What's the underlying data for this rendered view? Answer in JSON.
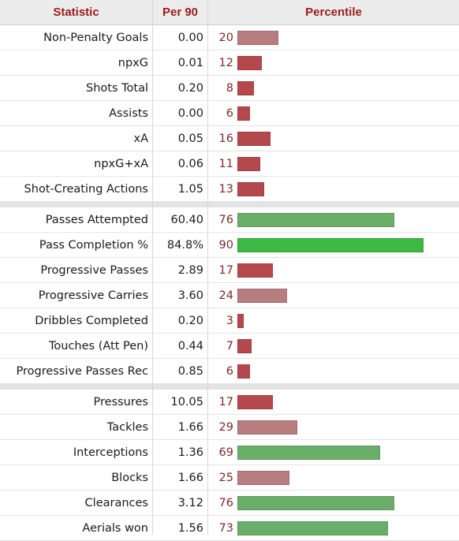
{
  "headers": {
    "statistic": "Statistic",
    "per90": "Per 90",
    "percentile": "Percentile"
  },
  "colors": {
    "low": "#b5484c",
    "mid": "#b77d7f",
    "high_muted": "#6aae6a",
    "high": "#3db843"
  },
  "chart_data": {
    "type": "table",
    "columns": [
      "Statistic",
      "Per 90",
      "Percentile"
    ],
    "percentile_range": [
      0,
      100
    ],
    "groups": [
      {
        "rows": [
          {
            "stat": "Non-Penalty Goals",
            "per90": "0.00",
            "percentile": 20
          },
          {
            "stat": "npxG",
            "per90": "0.01",
            "percentile": 12
          },
          {
            "stat": "Shots Total",
            "per90": "0.20",
            "percentile": 8
          },
          {
            "stat": "Assists",
            "per90": "0.00",
            "percentile": 6
          },
          {
            "stat": "xA",
            "per90": "0.05",
            "percentile": 16
          },
          {
            "stat": "npxG+xA",
            "per90": "0.06",
            "percentile": 11
          },
          {
            "stat": "Shot-Creating Actions",
            "per90": "1.05",
            "percentile": 13
          }
        ]
      },
      {
        "rows": [
          {
            "stat": "Passes Attempted",
            "per90": "60.40",
            "percentile": 76
          },
          {
            "stat": "Pass Completion %",
            "per90": "84.8%",
            "percentile": 90
          },
          {
            "stat": "Progressive Passes",
            "per90": "2.89",
            "percentile": 17
          },
          {
            "stat": "Progressive Carries",
            "per90": "3.60",
            "percentile": 24
          },
          {
            "stat": "Dribbles Completed",
            "per90": "0.20",
            "percentile": 3
          },
          {
            "stat": "Touches (Att Pen)",
            "per90": "0.44",
            "percentile": 7
          },
          {
            "stat": "Progressive Passes Rec",
            "per90": "0.85",
            "percentile": 6
          }
        ]
      },
      {
        "rows": [
          {
            "stat": "Pressures",
            "per90": "10.05",
            "percentile": 17
          },
          {
            "stat": "Tackles",
            "per90": "1.66",
            "percentile": 29
          },
          {
            "stat": "Interceptions",
            "per90": "1.36",
            "percentile": 69
          },
          {
            "stat": "Blocks",
            "per90": "1.66",
            "percentile": 25
          },
          {
            "stat": "Clearances",
            "per90": "3.12",
            "percentile": 76
          },
          {
            "stat": "Aerials won",
            "per90": "1.56",
            "percentile": 73
          }
        ]
      }
    ]
  }
}
